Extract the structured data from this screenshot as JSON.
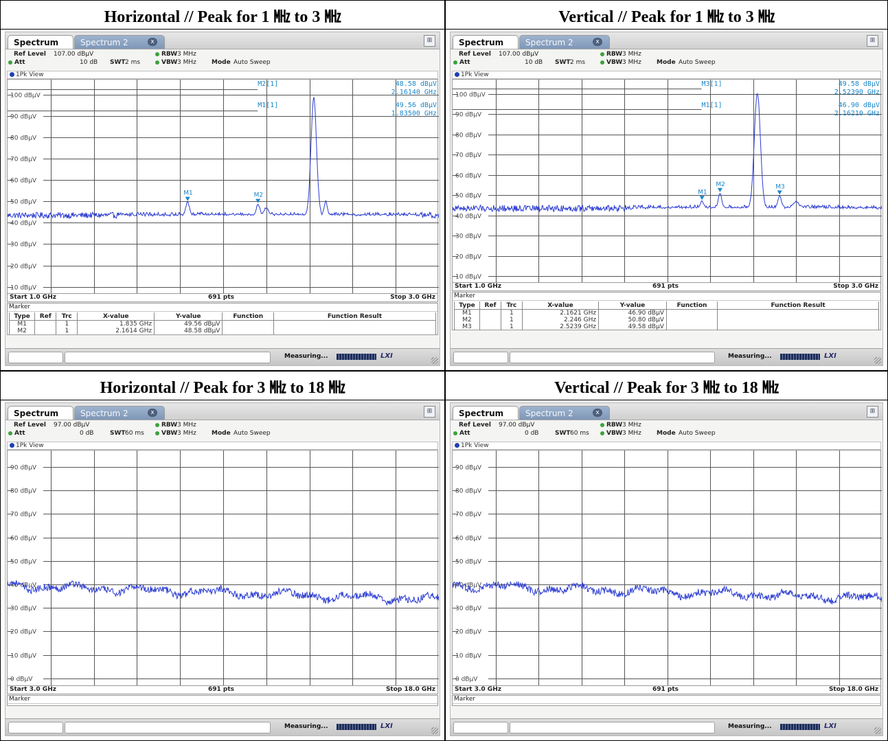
{
  "panels": [
    {
      "title": "Horizontal // Peak for 1 ㎒ to 3 ㎒",
      "tab1": "Spectrum",
      "tab2": "Spectrum 2",
      "tab_close": "x",
      "ref_level_label": "Ref Level",
      "ref_level": "107.00 dBμV",
      "att_label": "Att",
      "att": "10 dB",
      "swt_label": "SWT",
      "swt": "2 ms",
      "rbw_label": "RBW",
      "rbw": "3 MHz",
      "vbw_label": "VBW",
      "vbw": "3 MHz",
      "mode_label": "Mode",
      "mode": "Auto Sweep",
      "view": "1Pk View",
      "start": "Start 1.0 GHz",
      "pts": "691 pts",
      "stop": "Stop 3.0 GHz",
      "marker_label": "Marker",
      "marker_headers": [
        "Type",
        "Ref",
        "Trc",
        "X-value",
        "Y-value",
        "Function",
        "Function Result"
      ],
      "marker_rows": [
        [
          "M1",
          "",
          "1",
          "1.835 GHz",
          "49.56 dBμV",
          "",
          ""
        ],
        [
          "M2",
          "",
          "1",
          "2.1614 GHz",
          "48.58 dBμV",
          "",
          ""
        ]
      ],
      "status": "Measuring...",
      "lxi": "LXI",
      "marker_info": [
        {
          "label": "M2[1]",
          "value1": "48.58 dBμV",
          "value2": "2.16140 GHz"
        },
        {
          "label": "M1[1]",
          "value1": "49.56 dBμV",
          "value2": "1.83500 GHz"
        }
      ]
    },
    {
      "title": "Vertical // Peak for 1 ㎒ to 3 ㎒",
      "tab1": "Spectrum",
      "tab2": "Spectrum 2",
      "tab_close": "x",
      "ref_level_label": "Ref Level",
      "ref_level": "107.00 dBμV",
      "att_label": "Att",
      "att": "10 dB",
      "swt_label": "SWT",
      "swt": "2 ms",
      "rbw_label": "RBW",
      "rbw": "3 MHz",
      "vbw_label": "VBW",
      "vbw": "3 MHz",
      "mode_label": "Mode",
      "mode": "Auto Sweep",
      "view": "1Pk View",
      "start": "Start 1.0 GHz",
      "pts": "691 pts",
      "stop": "Stop 3.0 GHz",
      "marker_label": "Marker",
      "marker_headers": [
        "Type",
        "Ref",
        "Trc",
        "X-value",
        "Y-value",
        "Function",
        "Function Result"
      ],
      "marker_rows": [
        [
          "M1",
          "",
          "1",
          "2.1621 GHz",
          "46.90 dBμV",
          "",
          ""
        ],
        [
          "M2",
          "",
          "1",
          "2.246 GHz",
          "50.80 dBμV",
          "",
          ""
        ],
        [
          "M3",
          "",
          "1",
          "2.5239 GHz",
          "49.58 dBμV",
          "",
          ""
        ]
      ],
      "status": "Measuring...",
      "lxi": "LXI",
      "marker_info": [
        {
          "label": "M3[1]",
          "value1": "49.58 dBμV",
          "value2": "2.52390 GHz"
        },
        {
          "label": "M1[1]",
          "value1": "46.90 dBμV",
          "value2": "2.16210 GHz"
        }
      ]
    },
    {
      "title": "Horizontal // Peak for 3 ㎒ to 18 ㎒",
      "tab1": "Spectrum",
      "tab2": "Spectrum 2",
      "tab_close": "x",
      "ref_level_label": "Ref Level",
      "ref_level": "97.00 dBμV",
      "att_label": "Att",
      "att": "0 dB",
      "swt_label": "SWT",
      "swt": "60 ms",
      "rbw_label": "RBW",
      "rbw": "3 MHz",
      "vbw_label": "VBW",
      "vbw": "3 MHz",
      "mode_label": "Mode",
      "mode": "Auto Sweep",
      "view": "1Pk View",
      "start": "Start 3.0 GHz",
      "pts": "691 pts",
      "stop": "Stop 18.0 GHz",
      "marker_label": "Marker",
      "marker_headers": [],
      "marker_rows": [],
      "status": "Measuring...",
      "lxi": "LXI",
      "marker_info": []
    },
    {
      "title": "Vertical // Peak for 3 ㎒ to 18 ㎒",
      "tab1": "Spectrum",
      "tab2": "Spectrum 2",
      "tab_close": "x",
      "ref_level_label": "Ref Level",
      "ref_level": "97.00 dBμV",
      "att_label": "Att",
      "att": "0 dB",
      "swt_label": "SWT",
      "swt": "60 ms",
      "rbw_label": "RBW",
      "rbw": "3 MHz",
      "vbw_label": "VBW",
      "vbw": "3 MHz",
      "mode_label": "Mode",
      "mode": "Auto Sweep",
      "view": "1Pk View",
      "start": "Start 3.0 GHz",
      "pts": "691 pts",
      "stop": "Stop 18.0 GHz",
      "marker_label": "Marker",
      "marker_headers": [],
      "marker_rows": [],
      "status": "Measuring...",
      "lxi": "LXI",
      "marker_info": []
    }
  ],
  "chart_data": [
    {
      "type": "line",
      "x_range": [
        1.0,
        3.0
      ],
      "x_unit": "GHz",
      "y_ticks": [
        100,
        90,
        80,
        70,
        60,
        50,
        40,
        30,
        20,
        10
      ],
      "y_tick_labels": [
        "100 dBμV",
        "90 dBμV",
        "80 dBμV",
        "70 dBμV",
        "60 dBμV",
        "50 dBμV",
        "40 dBμV",
        "30 dBμV",
        "20 dBμV",
        "10 dBμV"
      ],
      "ylim": [
        7,
        107
      ],
      "grid": true,
      "series": [
        {
          "color": "#2a3bd1",
          "baseline": 43.5,
          "noise": 1.4,
          "features": [
            {
              "x": 1.835,
              "y": 49.56,
              "w": 0.012
            },
            {
              "x": 2.1614,
              "y": 48.58,
              "w": 0.012
            },
            {
              "x": 2.2,
              "y": 47.0,
              "w": 0.015
            },
            {
              "x": 2.42,
              "y": 98.5,
              "w": 0.018
            },
            {
              "x": 2.475,
              "y": 50.0,
              "w": 0.01
            }
          ]
        }
      ],
      "markers": [
        {
          "label": "M1",
          "x": 1.835,
          "y": 49.56
        },
        {
          "label": "M2",
          "x": 2.1614,
          "y": 48.58
        }
      ],
      "ref_lines": [
        {
          "y": 102.5,
          "x_end": 2.16
        },
        {
          "y": 92.5,
          "x_end": 2.16
        }
      ]
    },
    {
      "type": "line",
      "x_range": [
        1.0,
        3.0
      ],
      "x_unit": "GHz",
      "y_ticks": [
        100,
        90,
        80,
        70,
        60,
        50,
        40,
        30,
        20,
        10
      ],
      "y_tick_labels": [
        "100 dBμV",
        "90 dBμV",
        "80 dBμV",
        "70 dBμV",
        "60 dBμV",
        "50 dBμV",
        "40 dBμV",
        "30 dBμV",
        "20 dBμV",
        "10 dBμV"
      ],
      "ylim": [
        7,
        107
      ],
      "grid": true,
      "series": [
        {
          "color": "#2a3bd1",
          "baseline": 43.5,
          "noise": 1.6,
          "features": [
            {
              "x": 2.1621,
              "y": 46.9,
              "w": 0.012
            },
            {
              "x": 2.246,
              "y": 50.8,
              "w": 0.012
            },
            {
              "x": 2.42,
              "y": 100.5,
              "w": 0.02
            },
            {
              "x": 2.5239,
              "y": 49.58,
              "w": 0.012
            },
            {
              "x": 2.6,
              "y": 47.0,
              "w": 0.02
            }
          ]
        }
      ],
      "markers": [
        {
          "label": "M1",
          "x": 2.1621,
          "y": 46.9
        },
        {
          "label": "M2",
          "x": 2.246,
          "y": 50.8
        },
        {
          "label": "M3",
          "x": 2.5239,
          "y": 49.58
        }
      ],
      "ref_lines": [
        {
          "y": 102.5,
          "x_end": 2.16
        },
        {
          "y": 92.5,
          "x_end": 2.16
        }
      ]
    },
    {
      "type": "line",
      "x_range": [
        3.0,
        18.0
      ],
      "x_unit": "GHz",
      "y_ticks": [
        90,
        80,
        70,
        60,
        50,
        40,
        30,
        20,
        10,
        0
      ],
      "y_tick_labels": [
        "90 dBμV",
        "80 dBμV",
        "70 dBμV",
        "60 dBμV",
        "50 dBμV",
        "40 dBμV",
        "30 dBμV",
        "20 dBμV",
        "10 dBμV",
        "0 dBμV"
      ],
      "ylim": [
        -3,
        97
      ],
      "grid": true,
      "series": [
        {
          "color": "#2a3bd1",
          "start": 39.5,
          "end": 33.5,
          "noise": 1.5,
          "wave": 2.2,
          "features": []
        }
      ],
      "markers": [],
      "ref_lines": []
    },
    {
      "type": "line",
      "x_range": [
        3.0,
        18.0
      ],
      "x_unit": "GHz",
      "y_ticks": [
        90,
        80,
        70,
        60,
        50,
        40,
        30,
        20,
        10,
        0
      ],
      "y_tick_labels": [
        "90 dBμV",
        "80 dBμV",
        "70 dBμV",
        "60 dBμV",
        "50 dBμV",
        "40 dBμV",
        "30 dBμV",
        "20 dBμV",
        "10 dBμV",
        "0 dBμV"
      ],
      "ylim": [
        -3,
        97
      ],
      "grid": true,
      "series": [
        {
          "color": "#2a3bd1",
          "start": 39.5,
          "end": 34.0,
          "noise": 1.5,
          "wave": 2.2,
          "features": []
        }
      ],
      "markers": [],
      "ref_lines": []
    }
  ]
}
